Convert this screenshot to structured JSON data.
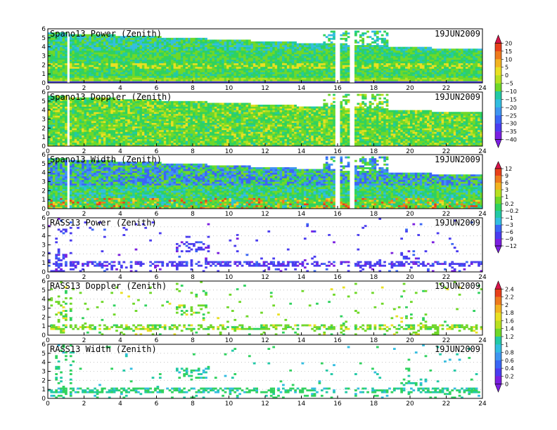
{
  "date": "19JUN2009",
  "x_ticks": [
    "0",
    "2",
    "4",
    "6",
    "8",
    "10",
    "12",
    "14",
    "16",
    "18",
    "20",
    "22",
    "24"
  ],
  "y_ticks": [
    "0",
    "1",
    "2",
    "3",
    "4",
    "5",
    "6"
  ],
  "chart_data": [
    {
      "type": "heatmap",
      "title": "Spano13 Power (Zenith)",
      "date": "19JUN2009",
      "xlim": [
        0,
        24
      ],
      "ylim": [
        0,
        6
      ],
      "colorbar": "power"
    },
    {
      "type": "heatmap",
      "title": "Spano13 Doppler (Zenith)",
      "date": "19JUN2009",
      "xlim": [
        0,
        24
      ],
      "ylim": [
        0,
        6
      ],
      "colorbar": "power"
    },
    {
      "type": "heatmap",
      "title": "Spano13 Width (Zenith)",
      "date": "19JUN2009",
      "xlim": [
        0,
        24
      ],
      "ylim": [
        0,
        6
      ],
      "colorbar": "width"
    },
    {
      "type": "heatmap",
      "title": "RASS13 Power (Zenith)",
      "date": "19JUN2009",
      "xlim": [
        0,
        24
      ],
      "ylim": [
        0,
        6
      ],
      "colorbar": "width"
    },
    {
      "type": "heatmap",
      "title": "RASS13 Doppler (Zenith)",
      "date": "19JUN2009",
      "xlim": [
        0,
        24
      ],
      "ylim": [
        0,
        6
      ],
      "colorbar": "rass"
    },
    {
      "type": "heatmap",
      "title": "RASS13 Width (Zenith)",
      "date": "19JUN2009",
      "xlim": [
        0,
        24
      ],
      "ylim": [
        0,
        6
      ],
      "colorbar": "rass"
    }
  ],
  "colorbars": {
    "power": {
      "labels": [
        "20",
        "15",
        "10",
        "5",
        "0",
        "−5",
        "−10",
        "−15",
        "−20",
        "−25",
        "−30",
        "−35",
        "−40"
      ]
    },
    "width": {
      "labels": [
        "12",
        "9",
        "6",
        "3",
        "1",
        "0.2",
        "−0.2",
        "−1",
        "−3",
        "−6",
        "−9",
        "−12"
      ]
    },
    "rass": {
      "labels": [
        "2.4",
        "2.2",
        "2",
        "1.8",
        "1.6",
        "1.4",
        "1.2",
        "1",
        "0.8",
        "0.6",
        "0.4",
        "0.2",
        "0"
      ]
    }
  },
  "colors": [
    "#7b1fe0",
    "#4a3cf0",
    "#3a66f5",
    "#3f95f0",
    "#32bde0",
    "#22c9a6",
    "#2fd25e",
    "#6fd828",
    "#b7e020",
    "#e9e022",
    "#f2b320",
    "#ee7a1d",
    "#e8401b",
    "#d8144a"
  ]
}
